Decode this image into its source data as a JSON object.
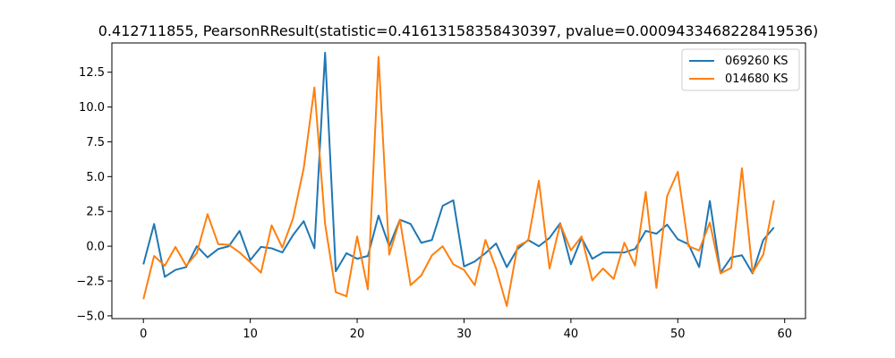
{
  "chart_data": {
    "type": "line",
    "title": "0.412711855, PearsonRResult(statistic=0.41613158358430397, pvalue=0.0009433468228419536)",
    "xlabel": "",
    "ylabel": "",
    "xlim": [
      -2.95,
      61.95
    ],
    "ylim": [
      -5.2,
      14.6
    ],
    "xticks": [
      0,
      10,
      20,
      30,
      40,
      50,
      60
    ],
    "xtick_labels": [
      "0",
      "10",
      "20",
      "30",
      "40",
      "50",
      "60"
    ],
    "yticks": [
      -5.0,
      -2.5,
      0.0,
      2.5,
      5.0,
      7.5,
      10.0,
      12.5
    ],
    "ytick_labels": [
      "−5.0",
      "−2.5",
      "0.0",
      "2.5",
      "5.0",
      "7.5",
      "10.0",
      "12.5"
    ],
    "grid": false,
    "legend_position": "top-right",
    "x": [
      0,
      1,
      2,
      3,
      4,
      5,
      6,
      7,
      8,
      9,
      10,
      11,
      12,
      13,
      14,
      15,
      16,
      17,
      18,
      19,
      20,
      21,
      22,
      23,
      24,
      25,
      26,
      27,
      28,
      29,
      30,
      31,
      32,
      33,
      34,
      35,
      36,
      37,
      38,
      39,
      40,
      41,
      42,
      43,
      44,
      45,
      46,
      47,
      48,
      49,
      50,
      51,
      52,
      53,
      54,
      55,
      56,
      57,
      58,
      59
    ],
    "series": [
      {
        "name": "069260 KS",
        "color": "#1f77b4",
        "values": [
          -1.3,
          1.6,
          -2.2,
          -1.7,
          -1.5,
          0.0,
          -0.8,
          -0.2,
          0.0,
          1.1,
          -1.0,
          -0.05,
          -0.15,
          -0.45,
          0.8,
          1.8,
          -0.15,
          13.9,
          -1.8,
          -0.5,
          -0.9,
          -0.7,
          2.2,
          0.0,
          1.9,
          1.6,
          0.25,
          0.45,
          2.9,
          3.3,
          -1.45,
          -1.1,
          -0.5,
          0.2,
          -1.5,
          -0.2,
          0.45,
          0.0,
          0.6,
          1.65,
          -1.3,
          0.6,
          -0.9,
          -0.45,
          -0.45,
          -0.45,
          -0.2,
          1.1,
          0.9,
          1.55,
          0.5,
          0.15,
          -1.5,
          3.25,
          -1.9,
          -0.8,
          -0.65,
          -1.95,
          0.45,
          1.35
        ]
      },
      {
        "name": "014680 KS",
        "color": "#ff7f0e",
        "values": [
          -3.8,
          -0.7,
          -1.4,
          -0.05,
          -1.4,
          -0.5,
          2.3,
          0.15,
          0.1,
          -0.45,
          -1.15,
          -1.9,
          1.5,
          -0.1,
          2.0,
          5.6,
          11.4,
          1.6,
          -3.3,
          -3.6,
          0.7,
          -3.1,
          13.6,
          -0.6,
          1.9,
          -2.8,
          -2.1,
          -0.65,
          0.0,
          -1.3,
          -1.7,
          -2.8,
          0.45,
          -1.6,
          -4.3,
          0.0,
          0.4,
          4.7,
          -1.6,
          1.6,
          -0.3,
          0.7,
          -2.45,
          -1.6,
          -2.35,
          0.25,
          -1.4,
          3.9,
          -3.0,
          3.6,
          5.35,
          0.0,
          -0.3,
          1.7,
          -1.95,
          -1.55,
          5.6,
          -1.9,
          -0.6,
          3.3
        ]
      }
    ]
  }
}
